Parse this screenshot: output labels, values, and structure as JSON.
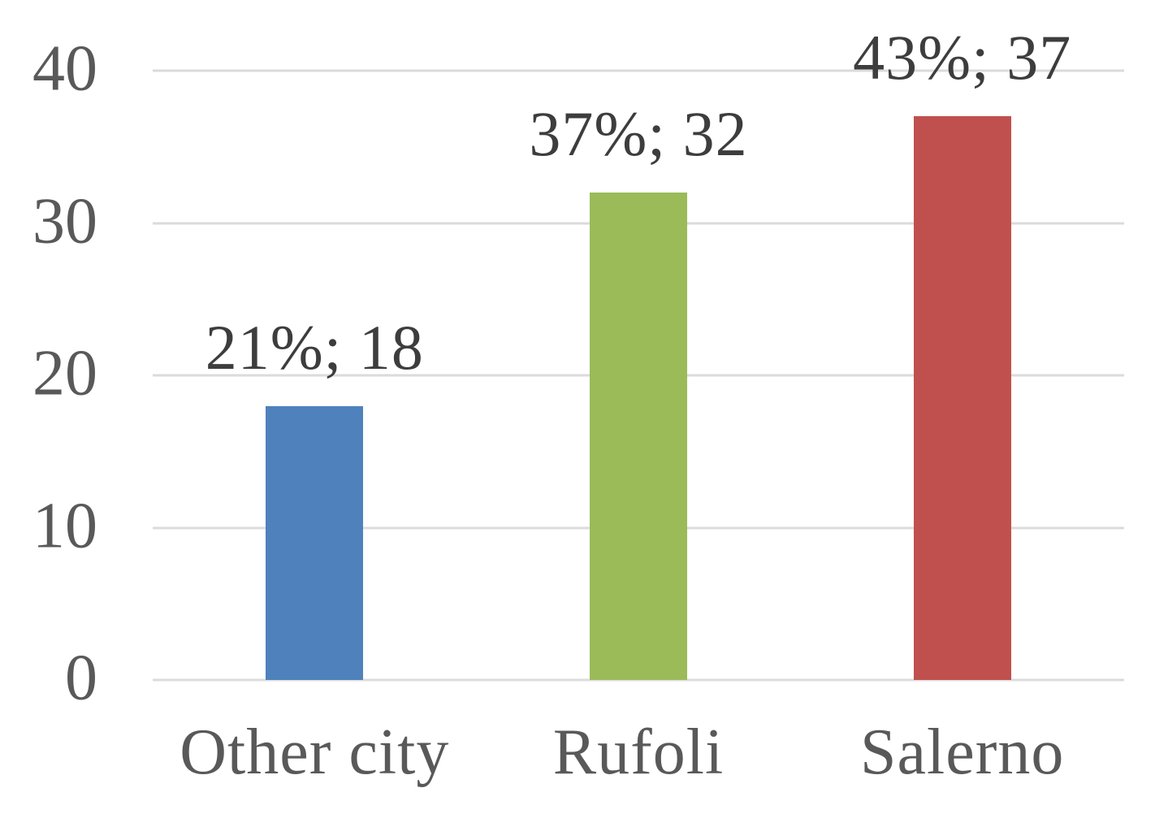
{
  "chart_data": {
    "type": "bar",
    "categories": [
      "Other city",
      "Rufoli",
      "Salerno"
    ],
    "values": [
      18,
      32,
      37
    ],
    "data_labels": [
      "21%; 18",
      "37%; 32",
      "43%; 37"
    ],
    "bar_colors": [
      "#4F81BD",
      "#9BBB59",
      "#C0504D"
    ],
    "title": "",
    "xlabel": "",
    "ylabel": "",
    "ylim": [
      0,
      40
    ],
    "yticks": [
      0,
      10,
      20,
      30,
      40
    ],
    "ytick_labels": [
      "0",
      "10",
      "20",
      "30",
      "40"
    ],
    "grid": true,
    "legend": "none",
    "colors": {
      "background": "#FFFFFF",
      "gridline": "#DBDBDB",
      "axis_text": "#595959",
      "category_text": "#595959",
      "data_label_text": "#3D3D3D"
    }
  }
}
